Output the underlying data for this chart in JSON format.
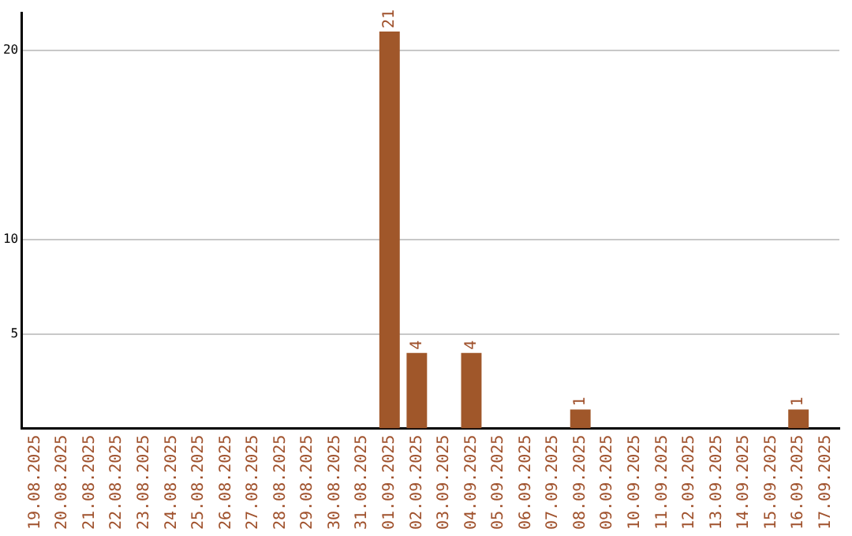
{
  "chart_data": {
    "type": "bar",
    "categories": [
      "19.08.2025",
      "20.08.2025",
      "21.08.2025",
      "22.08.2025",
      "23.08.2025",
      "24.08.2025",
      "25.08.2025",
      "26.08.2025",
      "27.08.2025",
      "28.08.2025",
      "29.08.2025",
      "30.08.2025",
      "31.08.2025",
      "01.09.2025",
      "02.09.2025",
      "03.09.2025",
      "04.09.2025",
      "05.09.2025",
      "06.09.2025",
      "07.09.2025",
      "08.09.2025",
      "09.09.2025",
      "10.09.2025",
      "11.09.2025",
      "12.09.2025",
      "13.09.2025",
      "14.09.2025",
      "15.09.2025",
      "16.09.2025",
      "17.09.2025"
    ],
    "values": [
      0,
      0,
      0,
      0,
      0,
      0,
      0,
      0,
      0,
      0,
      0,
      0,
      0,
      21,
      4,
      0,
      4,
      0,
      0,
      0,
      1,
      0,
      0,
      0,
      0,
      0,
      0,
      0,
      1,
      0
    ],
    "value_labels": [
      null,
      null,
      null,
      null,
      null,
      null,
      null,
      null,
      null,
      null,
      null,
      null,
      null,
      "21",
      "4",
      null,
      "4",
      null,
      null,
      null,
      "1",
      null,
      null,
      null,
      null,
      null,
      null,
      null,
      "1",
      null
    ],
    "color": "#a0572a",
    "ylim": [
      0,
      22
    ],
    "yticks": [
      5,
      10,
      20
    ],
    "grid": "y",
    "legend": false
  }
}
